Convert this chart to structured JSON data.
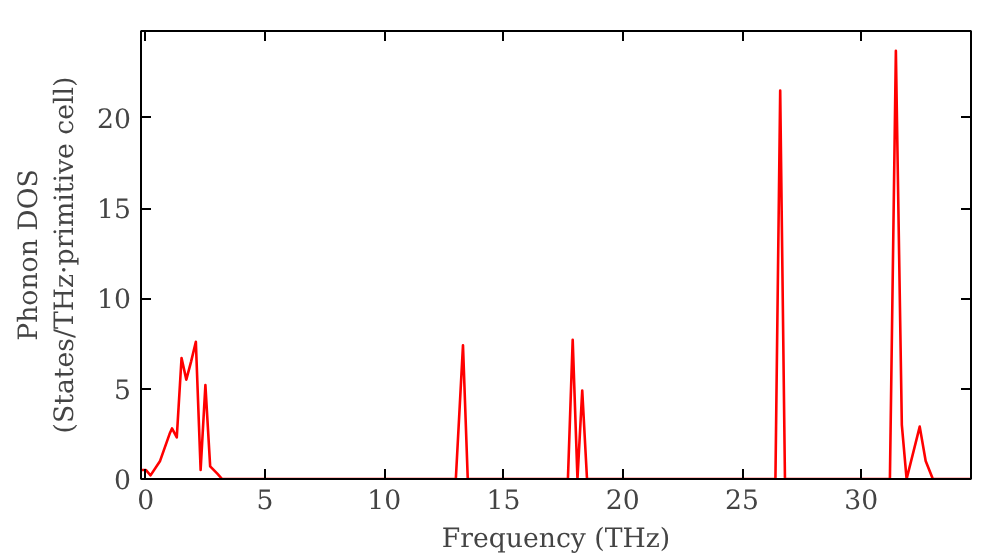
{
  "chart_data": {
    "type": "line",
    "xlabel": "Frequency (THz)",
    "ylabel": "Phonon DOS\n(States/THz·primitive cell)",
    "x": [
      -0.2,
      0.0,
      0.2,
      0.6,
      1.0,
      1.1,
      1.3,
      1.5,
      1.7,
      1.9,
      2.1,
      2.3,
      2.5,
      2.7,
      3.0,
      3.2,
      13.0,
      13.3,
      13.5,
      17.7,
      17.9,
      18.1,
      18.3,
      18.5,
      26.4,
      26.6,
      26.8,
      31.2,
      31.45,
      31.7,
      31.9,
      32.45,
      32.7,
      33.0,
      34.6
    ],
    "series": [
      {
        "color": "#ff0000",
        "values": [
          0.5,
          0.5,
          0.2,
          1.0,
          2.5,
          2.8,
          2.3,
          6.7,
          5.5,
          6.5,
          7.6,
          0.5,
          5.2,
          0.7,
          0.3,
          0,
          0,
          7.4,
          0,
          0,
          7.7,
          0,
          4.9,
          0,
          0,
          21.5,
          0,
          0,
          23.7,
          3,
          0,
          2.9,
          1,
          0,
          0
        ]
      }
    ],
    "xlim": [
      -0.2,
      34.6
    ],
    "ylim": [
      0,
      24.8
    ],
    "xticks": [
      0,
      5,
      10,
      15,
      20,
      25,
      30
    ],
    "yticks": [
      0,
      5,
      10,
      15,
      20
    ],
    "grid": false,
    "marker": "none",
    "line_style": "solid"
  }
}
